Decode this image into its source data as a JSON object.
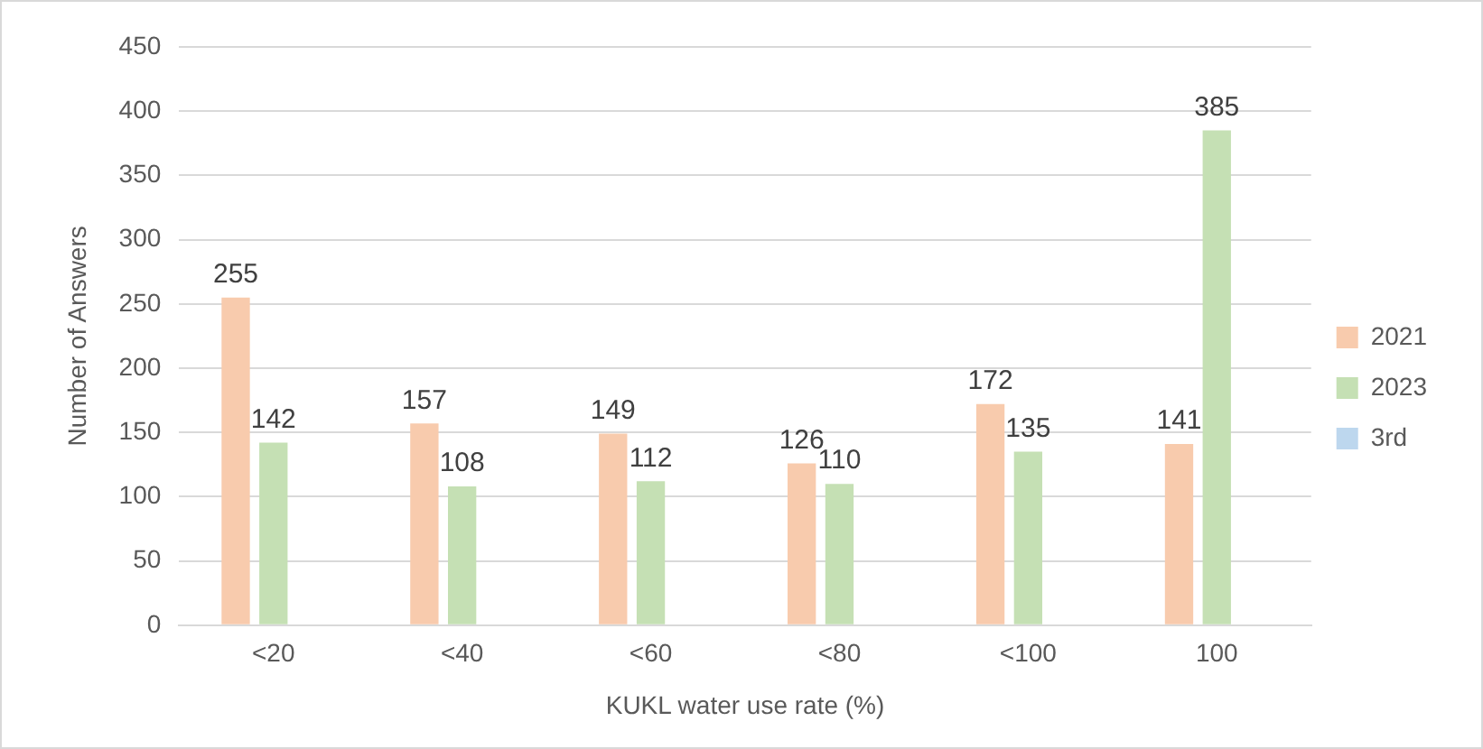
{
  "chart_data": {
    "type": "bar",
    "xlabel": "KUKL water use rate (%)",
    "ylabel": "Number of Answers",
    "categories": [
      "<20",
      "<40",
      "<60",
      "<80",
      "<100",
      "100"
    ],
    "series": [
      {
        "name": "2021",
        "color": "#f8cbad",
        "values": [
          255,
          157,
          149,
          126,
          172,
          141
        ]
      },
      {
        "name": "2023",
        "color": "#c5e0b4",
        "values": [
          142,
          108,
          112,
          110,
          135,
          385
        ]
      },
      {
        "name": "3rd",
        "color": "#bdd7ee",
        "values": [
          null,
          null,
          null,
          null,
          null,
          null
        ]
      }
    ],
    "ylim": [
      0,
      450
    ],
    "yticks": [
      0,
      50,
      100,
      150,
      200,
      250,
      300,
      350,
      400,
      450
    ],
    "grid": "y",
    "legend": "right",
    "data_labels": true
  }
}
